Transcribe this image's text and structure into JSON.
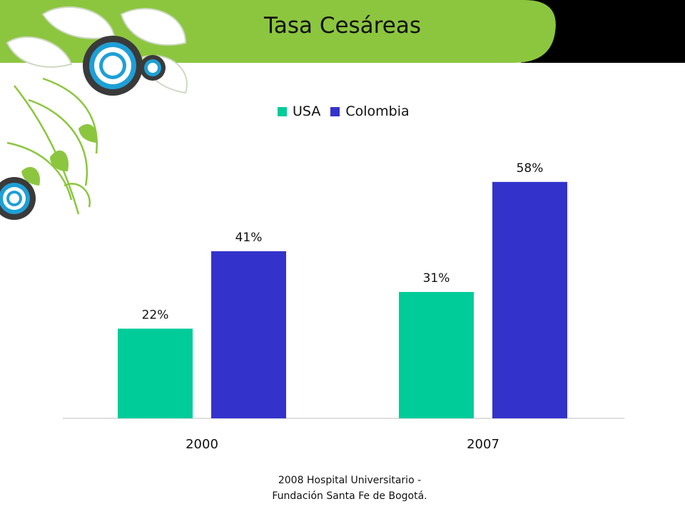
{
  "slide": {
    "title": "Tasa Cesáreas",
    "footer_line1": "2008  Hospital Universitario -",
    "footer_line2": "Fundación Santa Fe de Bogotá."
  },
  "colors": {
    "header_green": "#8cc63f",
    "header_black": "#000000",
    "usa": "#00cc99",
    "colombia": "#3333cc"
  },
  "chart_data": {
    "type": "bar",
    "categories": [
      "2000",
      "2007"
    ],
    "series": [
      {
        "name": "USA",
        "values": [
          22,
          31
        ],
        "labels": [
          "22%",
          "31%"
        ]
      },
      {
        "name": "Colombia",
        "values": [
          41,
          58
        ],
        "labels": [
          "41%",
          "58%"
        ]
      }
    ],
    "ylim": [
      0,
      60
    ],
    "legend": "top",
    "grid": false
  }
}
